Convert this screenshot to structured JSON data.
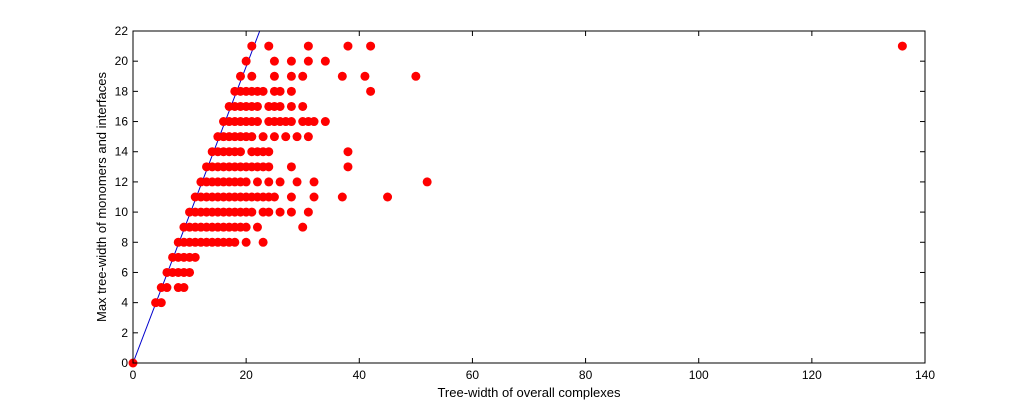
{
  "chart_data": {
    "type": "scatter",
    "title": "",
    "xlabel": "Tree-width of overall complexes",
    "ylabel": "Max tree-width of monomers and interfaces",
    "xlim": [
      0,
      140
    ],
    "ylim": [
      0,
      22
    ],
    "xticks": [
      "0",
      "20",
      "40",
      "60",
      "80",
      "100",
      "120",
      "140"
    ],
    "yticks": [
      "0",
      "2",
      "4",
      "6",
      "8",
      "10",
      "12",
      "14",
      "16",
      "18",
      "20",
      "22"
    ],
    "grid": false,
    "legend": "none",
    "marker_color": "#ff0000",
    "line_color": "#0000cc",
    "reference_line": {
      "x": [
        0,
        22.4
      ],
      "y": [
        0,
        22
      ]
    },
    "series": [
      {
        "points": [
          [
            0,
            0
          ],
          [
            4,
            4
          ],
          [
            5,
            4
          ],
          [
            5,
            5
          ],
          [
            6,
            5
          ],
          [
            6,
            6
          ],
          [
            7,
            6
          ],
          [
            8,
            6
          ],
          [
            9,
            6
          ],
          [
            10,
            6
          ],
          [
            7,
            7
          ],
          [
            8,
            7
          ],
          [
            9,
            7
          ],
          [
            10,
            7
          ],
          [
            11,
            7
          ],
          [
            8,
            5
          ],
          [
            9,
            5
          ],
          [
            8,
            8
          ],
          [
            9,
            8
          ],
          [
            10,
            8
          ],
          [
            11,
            8
          ],
          [
            12,
            8
          ],
          [
            13,
            8
          ],
          [
            14,
            8
          ],
          [
            15,
            8
          ],
          [
            16,
            8
          ],
          [
            17,
            8
          ],
          [
            18,
            8
          ],
          [
            20,
            8
          ],
          [
            23,
            8
          ],
          [
            9,
            9
          ],
          [
            10,
            9
          ],
          [
            11,
            9
          ],
          [
            12,
            9
          ],
          [
            13,
            9
          ],
          [
            14,
            9
          ],
          [
            15,
            9
          ],
          [
            16,
            9
          ],
          [
            17,
            9
          ],
          [
            18,
            9
          ],
          [
            19,
            9
          ],
          [
            20,
            9
          ],
          [
            22,
            9
          ],
          [
            30,
            9
          ],
          [
            10,
            10
          ],
          [
            11,
            10
          ],
          [
            12,
            10
          ],
          [
            13,
            10
          ],
          [
            14,
            10
          ],
          [
            15,
            10
          ],
          [
            16,
            10
          ],
          [
            17,
            10
          ],
          [
            18,
            10
          ],
          [
            19,
            10
          ],
          [
            20,
            10
          ],
          [
            21,
            10
          ],
          [
            23,
            10
          ],
          [
            24,
            10
          ],
          [
            26,
            10
          ],
          [
            28,
            10
          ],
          [
            31,
            10
          ],
          [
            11,
            11
          ],
          [
            12,
            11
          ],
          [
            13,
            11
          ],
          [
            14,
            11
          ],
          [
            15,
            11
          ],
          [
            16,
            11
          ],
          [
            17,
            11
          ],
          [
            18,
            11
          ],
          [
            19,
            11
          ],
          [
            20,
            11
          ],
          [
            21,
            11
          ],
          [
            22,
            11
          ],
          [
            23,
            11
          ],
          [
            24,
            11
          ],
          [
            25,
            11
          ],
          [
            28,
            11
          ],
          [
            32,
            11
          ],
          [
            37,
            11
          ],
          [
            45,
            11
          ],
          [
            12,
            12
          ],
          [
            13,
            12
          ],
          [
            14,
            12
          ],
          [
            15,
            12
          ],
          [
            16,
            12
          ],
          [
            17,
            12
          ],
          [
            18,
            12
          ],
          [
            19,
            12
          ],
          [
            20,
            12
          ],
          [
            22,
            12
          ],
          [
            24,
            12
          ],
          [
            26,
            12
          ],
          [
            29,
            12
          ],
          [
            32,
            12
          ],
          [
            52,
            12
          ],
          [
            13,
            13
          ],
          [
            14,
            13
          ],
          [
            15,
            13
          ],
          [
            16,
            13
          ],
          [
            17,
            13
          ],
          [
            18,
            13
          ],
          [
            19,
            13
          ],
          [
            20,
            13
          ],
          [
            21,
            13
          ],
          [
            22,
            13
          ],
          [
            23,
            13
          ],
          [
            24,
            13
          ],
          [
            28,
            13
          ],
          [
            38,
            13
          ],
          [
            14,
            14
          ],
          [
            15,
            14
          ],
          [
            16,
            14
          ],
          [
            17,
            14
          ],
          [
            18,
            14
          ],
          [
            19,
            14
          ],
          [
            21,
            14
          ],
          [
            22,
            14
          ],
          [
            23,
            14
          ],
          [
            24,
            14
          ],
          [
            38,
            14
          ],
          [
            15,
            15
          ],
          [
            16,
            15
          ],
          [
            17,
            15
          ],
          [
            18,
            15
          ],
          [
            19,
            15
          ],
          [
            20,
            15
          ],
          [
            21,
            15
          ],
          [
            23,
            15
          ],
          [
            25,
            15
          ],
          [
            27,
            15
          ],
          [
            29,
            15
          ],
          [
            31,
            15
          ],
          [
            16,
            16
          ],
          [
            17,
            16
          ],
          [
            18,
            16
          ],
          [
            19,
            16
          ],
          [
            20,
            16
          ],
          [
            21,
            16
          ],
          [
            22,
            16
          ],
          [
            24,
            16
          ],
          [
            25,
            16
          ],
          [
            26,
            16
          ],
          [
            27,
            16
          ],
          [
            28,
            16
          ],
          [
            30,
            16
          ],
          [
            31,
            16
          ],
          [
            32,
            16
          ],
          [
            34,
            16
          ],
          [
            17,
            17
          ],
          [
            18,
            17
          ],
          [
            19,
            17
          ],
          [
            20,
            17
          ],
          [
            21,
            17
          ],
          [
            22,
            17
          ],
          [
            24,
            17
          ],
          [
            25,
            17
          ],
          [
            26,
            17
          ],
          [
            28,
            17
          ],
          [
            30,
            17
          ],
          [
            18,
            18
          ],
          [
            19,
            18
          ],
          [
            20,
            18
          ],
          [
            21,
            18
          ],
          [
            22,
            18
          ],
          [
            23,
            18
          ],
          [
            25,
            18
          ],
          [
            26,
            18
          ],
          [
            28,
            18
          ],
          [
            42,
            18
          ],
          [
            19,
            19
          ],
          [
            21,
            19
          ],
          [
            25,
            19
          ],
          [
            28,
            19
          ],
          [
            30,
            19
          ],
          [
            37,
            19
          ],
          [
            41,
            19
          ],
          [
            50,
            19
          ],
          [
            20,
            20
          ],
          [
            25,
            20
          ],
          [
            28,
            20
          ],
          [
            31,
            20
          ],
          [
            34,
            20
          ],
          [
            21,
            21
          ],
          [
            24,
            21
          ],
          [
            31,
            21
          ],
          [
            38,
            21
          ],
          [
            42,
            21
          ],
          [
            136,
            21
          ]
        ]
      }
    ]
  }
}
